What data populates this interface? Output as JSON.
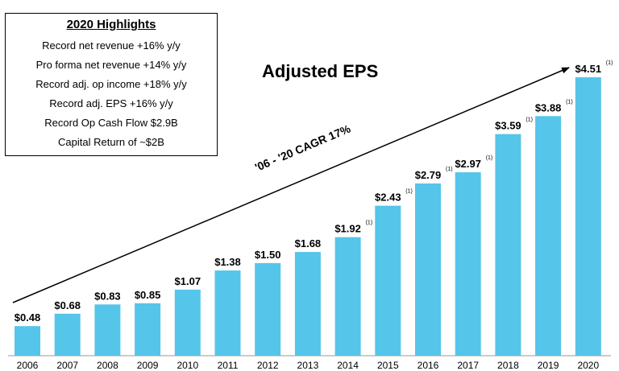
{
  "highlights": {
    "title": "2020 Highlights",
    "items": [
      "Record net revenue +16% y/y",
      "Pro forma net revenue +14% y/y",
      "Record adj. op income +18% y/y",
      "Record adj. EPS +16% y/y",
      "Record Op Cash Flow $2.9B",
      "Capital Return of ~$2B"
    ]
  },
  "chart_data": {
    "type": "bar",
    "title": "Adjusted EPS",
    "annotation": "'06 - '20 CAGR 17%",
    "categories": [
      "2006",
      "2007",
      "2008",
      "2009",
      "2010",
      "2011",
      "2012",
      "2013",
      "2014",
      "2015",
      "2016",
      "2017",
      "2018",
      "2019",
      "2020"
    ],
    "values": [
      0.48,
      0.68,
      0.83,
      0.85,
      1.07,
      1.38,
      1.5,
      1.68,
      1.92,
      2.43,
      2.79,
      2.97,
      3.59,
      3.88,
      4.51
    ],
    "labels": [
      "$0.48",
      "$0.68",
      "$0.83",
      "$0.85",
      "$1.07",
      "$1.38",
      "$1.50",
      "$1.68",
      "$1.92",
      "$2.43",
      "$2.79",
      "$2.97",
      "$3.59",
      "$3.88",
      "$4.51"
    ],
    "footnote_marker": "(1)",
    "footnoted": [
      false,
      false,
      false,
      false,
      false,
      false,
      false,
      false,
      true,
      true,
      true,
      true,
      true,
      true,
      true
    ],
    "bar_color": "#55C5EA",
    "ylim": [
      0,
      4.51
    ],
    "xlabel": "",
    "ylabel": ""
  }
}
